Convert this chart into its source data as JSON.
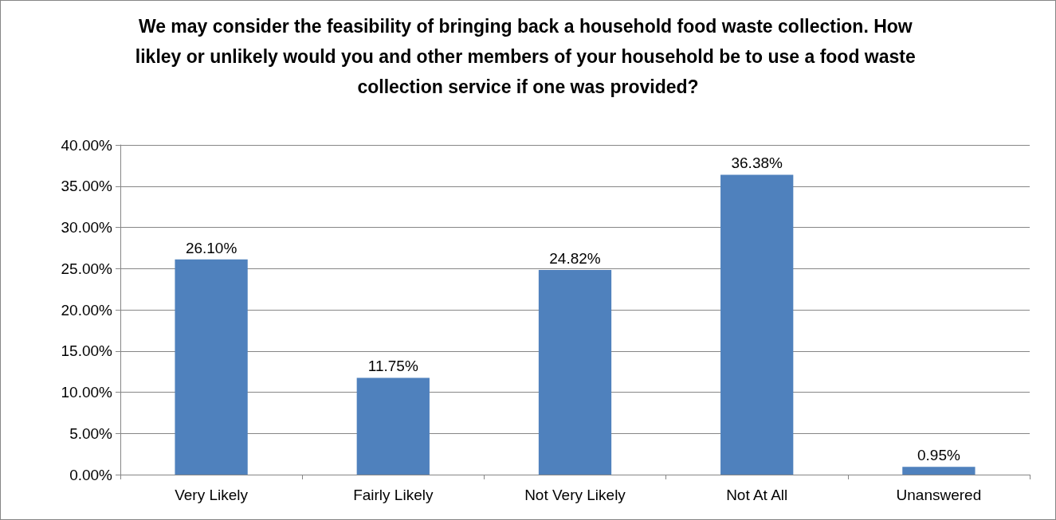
{
  "chart_data": {
    "type": "bar",
    "title": "We may consider the feasibility of bringing back a household food waste collection. How likley or unlikely would you and other members of your household be to use a food waste collection service if one was provided?",
    "categories": [
      "Very Likely",
      "Fairly Likely",
      "Not Very Likely",
      "Not At All",
      "Unanswered"
    ],
    "values": [
      26.1,
      11.75,
      24.82,
      36.38,
      0.95
    ],
    "value_labels": [
      "26.10%",
      "11.75%",
      "24.82%",
      "36.38%",
      "0.95%"
    ],
    "color": "#4f81bd",
    "ylim": [
      0,
      40
    ],
    "yticks": [
      {
        "value": 0,
        "label": "0.00%"
      },
      {
        "value": 5,
        "label": "5.00%"
      },
      {
        "value": 10,
        "label": "10.00%"
      },
      {
        "value": 15,
        "label": "15.00%"
      },
      {
        "value": 20,
        "label": "20.00%"
      },
      {
        "value": 25,
        "label": "25.00%"
      },
      {
        "value": 30,
        "label": "30.00%"
      },
      {
        "value": 35,
        "label": "35.00%"
      },
      {
        "value": 40,
        "label": "40.00%"
      }
    ],
    "grid": "y"
  }
}
